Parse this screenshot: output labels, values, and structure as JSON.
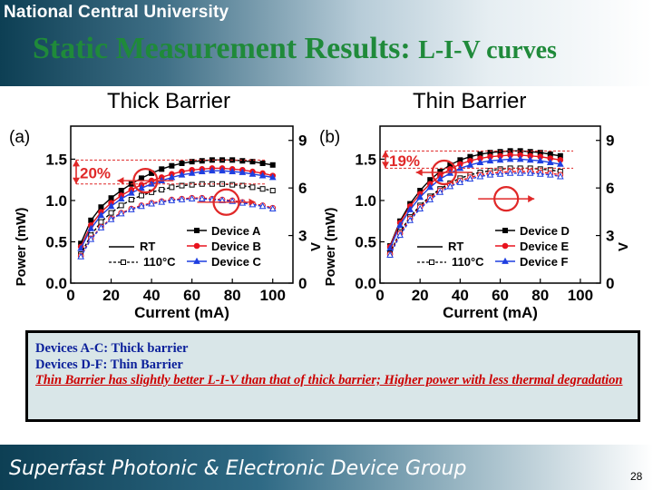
{
  "slide": {
    "university": "National Central University",
    "title_main": "Static Measurement Results: ",
    "title_sub": "L-I-V curves",
    "left_heading": "Thick Barrier",
    "right_heading": "Thin Barrier",
    "notes": [
      "Devices A-C: Thick barrier",
      "Devices D-F: Thin Barrier",
      "Thin Barrier has slightly better L-I-V than that of thick barrier; Higher power with less thermal degradation"
    ],
    "footer": "Superfast Photonic & Electronic Device Group",
    "page_number": "28"
  },
  "colors": {
    "black": "#000000",
    "red": "#e8141e",
    "blue": "#1f3fe0",
    "highlight": "#e02828"
  },
  "chart_data": [
    {
      "type": "line",
      "panel_label": "(a)",
      "xlabel": "Current (mA)",
      "ylabel": "Power (mW)",
      "y2label": "V",
      "xlim": [
        0,
        110
      ],
      "ylim": [
        0,
        1.9
      ],
      "y2lim": [
        0,
        9.9
      ],
      "xticks": [
        "0",
        "20",
        "40",
        "60",
        "80",
        "100"
      ],
      "yticks": [
        "0.0",
        "0.5",
        "1.0",
        "1.5"
      ],
      "y2ticks": [
        "0",
        "3",
        "6",
        "9"
      ],
      "annotation": "20%",
      "legend_temp": [
        "RT",
        "110°C"
      ],
      "series": [
        {
          "name": "Device A",
          "color": "#000000",
          "marker": "square",
          "group": "RT",
          "x": [
            5,
            10,
            15,
            20,
            25,
            30,
            35,
            40,
            45,
            50,
            55,
            60,
            65,
            70,
            75,
            80,
            85,
            90,
            95,
            100
          ],
          "y": [
            0.48,
            0.76,
            0.92,
            1.03,
            1.12,
            1.2,
            1.27,
            1.33,
            1.38,
            1.42,
            1.45,
            1.47,
            1.48,
            1.49,
            1.49,
            1.49,
            1.48,
            1.47,
            1.45,
            1.43
          ]
        },
        {
          "name": "Device B",
          "color": "#e8141e",
          "marker": "circle",
          "group": "RT",
          "x": [
            5,
            10,
            15,
            20,
            25,
            30,
            35,
            40,
            45,
            50,
            55,
            60,
            65,
            70,
            75,
            80,
            85,
            90,
            95,
            100
          ],
          "y": [
            0.44,
            0.7,
            0.86,
            0.97,
            1.06,
            1.13,
            1.19,
            1.24,
            1.28,
            1.32,
            1.35,
            1.37,
            1.38,
            1.39,
            1.39,
            1.38,
            1.37,
            1.35,
            1.33,
            1.3
          ]
        },
        {
          "name": "Device C",
          "color": "#1f3fe0",
          "marker": "triangle",
          "group": "RT",
          "x": [
            5,
            10,
            15,
            20,
            25,
            30,
            35,
            40,
            45,
            50,
            55,
            60,
            65,
            70,
            75,
            80,
            85,
            90,
            95,
            100
          ],
          "y": [
            0.42,
            0.66,
            0.82,
            0.93,
            1.02,
            1.09,
            1.15,
            1.2,
            1.24,
            1.28,
            1.31,
            1.33,
            1.35,
            1.36,
            1.36,
            1.35,
            1.34,
            1.32,
            1.3,
            1.28
          ]
        },
        {
          "name": "Device A",
          "color": "#000000",
          "marker": "square",
          "group": "110°C",
          "x": [
            5,
            10,
            15,
            20,
            25,
            30,
            35,
            40,
            45,
            50,
            55,
            60,
            65,
            70,
            75,
            80,
            85,
            90,
            95,
            100
          ],
          "y": [
            0.35,
            0.58,
            0.74,
            0.85,
            0.94,
            1.01,
            1.06,
            1.1,
            1.13,
            1.16,
            1.18,
            1.19,
            1.2,
            1.2,
            1.2,
            1.19,
            1.18,
            1.16,
            1.14,
            1.12
          ]
        },
        {
          "name": "Device B",
          "color": "#e8141e",
          "marker": "circle",
          "group": "110°C",
          "x": [
            5,
            10,
            15,
            20,
            25,
            30,
            35,
            40,
            45,
            50,
            55,
            60,
            65,
            70,
            75,
            80,
            85,
            90,
            95,
            100
          ],
          "y": [
            0.33,
            0.54,
            0.68,
            0.78,
            0.85,
            0.9,
            0.94,
            0.97,
            0.99,
            1.01,
            1.02,
            1.03,
            1.03,
            1.02,
            1.01,
            1.0,
            0.98,
            0.96,
            0.94,
            0.91
          ]
        },
        {
          "name": "Device C",
          "color": "#1f3fe0",
          "marker": "triangle",
          "group": "110°C",
          "x": [
            5,
            10,
            15,
            20,
            25,
            30,
            35,
            40,
            45,
            50,
            55,
            60,
            65,
            70,
            75,
            80,
            85,
            90,
            95,
            100
          ],
          "y": [
            0.32,
            0.53,
            0.67,
            0.77,
            0.84,
            0.89,
            0.93,
            0.96,
            0.98,
            1.0,
            1.01,
            1.02,
            1.02,
            1.01,
            1.0,
            0.99,
            0.97,
            0.95,
            0.93,
            0.9
          ]
        }
      ]
    },
    {
      "type": "line",
      "panel_label": "(b)",
      "xlabel": "Current (mA)",
      "ylabel": "Power (mW)",
      "y2label": "V",
      "xlim": [
        0,
        110
      ],
      "ylim": [
        0,
        1.9
      ],
      "y2lim": [
        0,
        9.9
      ],
      "xticks": [
        "0",
        "20",
        "40",
        "60",
        "80",
        "100"
      ],
      "yticks": [
        "0.0",
        "0.5",
        "1.0",
        "1.5"
      ],
      "y2ticks": [
        "0",
        "3",
        "6",
        "9"
      ],
      "annotation": "19%",
      "legend_temp": [
        "RT",
        "110°C"
      ],
      "series": [
        {
          "name": "Device D",
          "color": "#000000",
          "marker": "square",
          "group": "RT",
          "x": [
            5,
            10,
            15,
            20,
            25,
            30,
            35,
            40,
            45,
            50,
            55,
            60,
            65,
            70,
            75,
            80,
            85,
            90
          ],
          "y": [
            0.45,
            0.75,
            0.96,
            1.12,
            1.25,
            1.35,
            1.43,
            1.49,
            1.53,
            1.56,
            1.58,
            1.59,
            1.6,
            1.6,
            1.59,
            1.58,
            1.56,
            1.54
          ]
        },
        {
          "name": "Device E",
          "color": "#e8141e",
          "marker": "circle",
          "group": "RT",
          "x": [
            5,
            10,
            15,
            20,
            25,
            30,
            35,
            40,
            45,
            50,
            55,
            60,
            65,
            70,
            75,
            80,
            85,
            90
          ],
          "y": [
            0.44,
            0.73,
            0.93,
            1.08,
            1.2,
            1.3,
            1.38,
            1.44,
            1.48,
            1.51,
            1.53,
            1.54,
            1.55,
            1.55,
            1.54,
            1.53,
            1.51,
            1.49
          ]
        },
        {
          "name": "Device F",
          "color": "#1f3fe0",
          "marker": "triangle",
          "group": "RT",
          "x": [
            5,
            10,
            15,
            20,
            25,
            30,
            35,
            40,
            45,
            50,
            55,
            60,
            65,
            70,
            75,
            80,
            85,
            90
          ],
          "y": [
            0.42,
            0.7,
            0.89,
            1.04,
            1.16,
            1.26,
            1.33,
            1.39,
            1.43,
            1.46,
            1.48,
            1.49,
            1.5,
            1.5,
            1.49,
            1.48,
            1.46,
            1.44
          ]
        },
        {
          "name": "Device D",
          "color": "#000000",
          "marker": "square",
          "group": "110°C",
          "x": [
            5,
            10,
            15,
            20,
            25,
            30,
            35,
            40,
            45,
            50,
            55,
            60,
            65,
            70,
            75,
            80,
            85,
            90
          ],
          "y": [
            0.36,
            0.62,
            0.8,
            0.94,
            1.05,
            1.14,
            1.21,
            1.27,
            1.31,
            1.34,
            1.36,
            1.38,
            1.39,
            1.39,
            1.39,
            1.38,
            1.37,
            1.35
          ]
        },
        {
          "name": "Device E",
          "color": "#e8141e",
          "marker": "circle",
          "group": "110°C",
          "x": [
            5,
            10,
            15,
            20,
            25,
            30,
            35,
            40,
            45,
            50,
            55,
            60,
            65,
            70,
            75,
            80,
            85,
            90
          ],
          "y": [
            0.35,
            0.6,
            0.78,
            0.92,
            1.03,
            1.12,
            1.19,
            1.24,
            1.28,
            1.31,
            1.33,
            1.34,
            1.35,
            1.35,
            1.35,
            1.34,
            1.33,
            1.31
          ]
        },
        {
          "name": "Device F",
          "color": "#1f3fe0",
          "marker": "triangle",
          "group": "110°C",
          "x": [
            5,
            10,
            15,
            20,
            25,
            30,
            35,
            40,
            45,
            50,
            55,
            60,
            65,
            70,
            75,
            80,
            85,
            90
          ],
          "y": [
            0.34,
            0.58,
            0.76,
            0.9,
            1.01,
            1.1,
            1.17,
            1.22,
            1.26,
            1.29,
            1.31,
            1.32,
            1.33,
            1.33,
            1.33,
            1.32,
            1.31,
            1.29
          ]
        }
      ]
    }
  ]
}
